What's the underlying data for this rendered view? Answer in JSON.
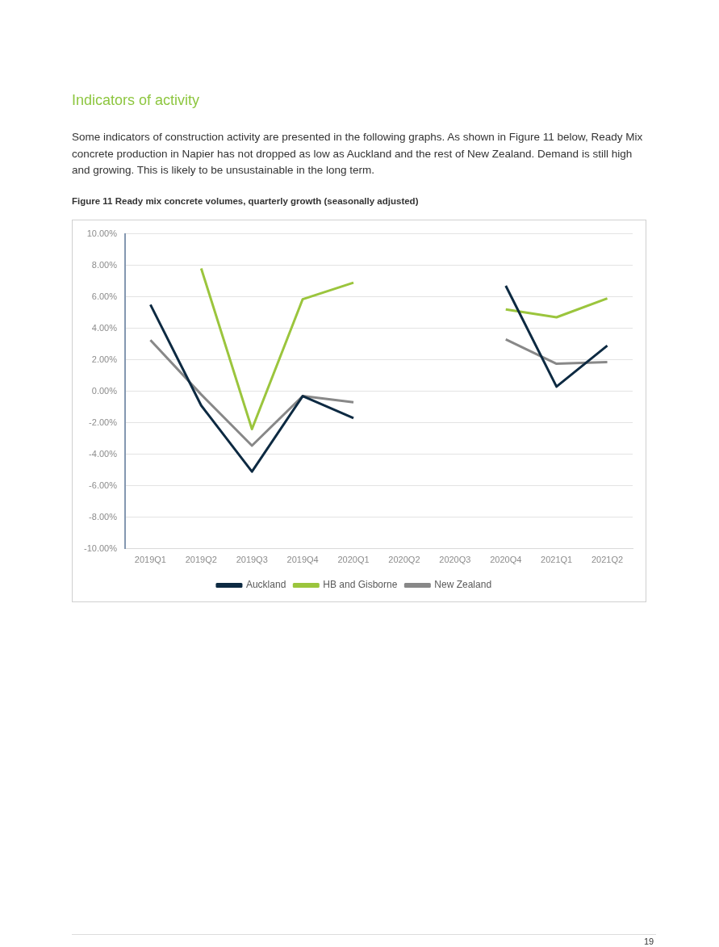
{
  "chart_data": {
    "type": "line",
    "title": "Figure 11  Ready mix concrete volumes, quarterly growth (seasonally adjusted)",
    "annotations": [
      "Indicators of activity",
      "Some indicators of construction activity are presented in the following graphs.  As shown in Figure 11 below, Ready Mix concrete production in Napier has not dropped as low as Auckland and the rest of New Zealand. Demand is still high and growing. This is likely to be unsustainable in the long term.",
      "19"
    ],
    "categories": [
      "2019Q1",
      "2019Q2",
      "2019Q3",
      "2019Q4",
      "2020Q1",
      "2020Q2",
      "2020Q3",
      "2020Q4",
      "2021Q1",
      "2021Q2"
    ],
    "series": [
      {
        "name": "Auckland",
        "color": "#0d2a42",
        "values": [
          5.5,
          -0.9,
          -5.1,
          -0.3,
          -1.7,
          null,
          null,
          6.7,
          0.3,
          2.9
        ]
      },
      {
        "name": "HB and Gisborne",
        "color": "#9bc53d",
        "values": [
          null,
          7.8,
          -2.4,
          5.85,
          6.9,
          null,
          null,
          5.2,
          4.7,
          5.9
        ]
      },
      {
        "name": "New Zealand",
        "color": "#888888",
        "values": [
          3.25,
          -0.2,
          -3.45,
          -0.3,
          -0.7,
          null,
          null,
          3.3,
          1.75,
          1.85
        ]
      }
    ],
    "ylim": [
      -10,
      10
    ],
    "yticks": [
      {
        "value": -10,
        "label": "-10.00%"
      },
      {
        "value": -8,
        "label": "-8.00%"
      },
      {
        "value": -6,
        "label": "-6.00%"
      },
      {
        "value": -4,
        "label": "-4.00%"
      },
      {
        "value": -2,
        "label": "-2.00%"
      },
      {
        "value": 0,
        "label": "0.00%"
      },
      {
        "value": 2,
        "label": "2.00%"
      },
      {
        "value": 4,
        "label": "4.00%"
      },
      {
        "value": 6,
        "label": "6.00%"
      },
      {
        "value": 8,
        "label": "8.00%"
      },
      {
        "value": 10,
        "label": "10.00%"
      }
    ],
    "grid": "y",
    "legend": "bottom",
    "marker": "none",
    "line_style": "solid"
  }
}
